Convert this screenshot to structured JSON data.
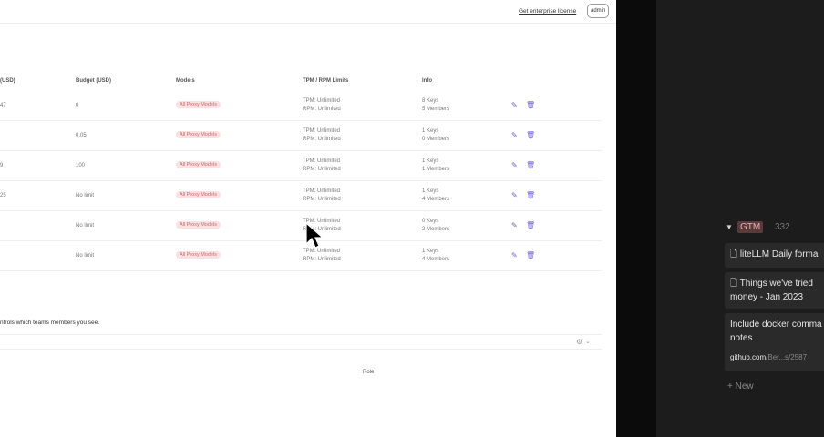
{
  "header": {
    "license_link": "Get enterprise license",
    "user_button": "admin"
  },
  "table": {
    "columns": [
      "(USD)",
      "Budget (USD)",
      "Models",
      "TPM / RPM Limits",
      "Info"
    ],
    "rows": [
      {
        "spend": "47",
        "budget": "0",
        "models": "All Proxy Models",
        "tpm": "TPM: Unlimited",
        "rpm": "RPM: Unlimited",
        "keys": "8 Keys",
        "members": "5 Members"
      },
      {
        "spend": "",
        "budget": "0.05",
        "models": "All Proxy Models",
        "tpm": "TPM: Unlimited",
        "rpm": "RPM: Unlimited",
        "keys": "1 Keys",
        "members": "0 Members"
      },
      {
        "spend": "9",
        "budget": "100",
        "models": "All Proxy Models",
        "tpm": "TPM: Unlimited",
        "rpm": "RPM: Unlimited",
        "keys": "1 Keys",
        "members": "1 Members"
      },
      {
        "spend": "25",
        "budget": "No limit",
        "models": "All Proxy Models",
        "tpm": "TPM: Unlimited",
        "rpm": "RPM: Unlimited",
        "keys": "1 Keys",
        "members": "4 Members"
      },
      {
        "spend": "",
        "budget": "No limit",
        "models": "All Proxy Models",
        "tpm": "TPM: Unlimited",
        "rpm": "RPM: Unlimited",
        "keys": "0 Keys",
        "members": "2 Members"
      },
      {
        "spend": "",
        "budget": "No limit",
        "models": "All Proxy Models",
        "tpm": "TPM: Unlimited",
        "rpm": "RPM: Unlimited",
        "keys": "1 Keys",
        "members": "4 Members"
      }
    ]
  },
  "section": {
    "note": "ntrols which teams members you see.",
    "role_header": "Role"
  },
  "board": {
    "group_tag": "GTM",
    "group_count": "332",
    "cards": [
      "liteLLM Daily forma",
      "Things we've tried money - Jan 2023"
    ],
    "link_card": {
      "title": "Include docker comma notes",
      "link_host": "github.com",
      "link_path": "/Ber...s/2587"
    },
    "new_label": "New"
  },
  "colors": {
    "accent": "#6b63d6",
    "pill_bg": "#fbe1e1",
    "pill_text": "#c86b6b"
  }
}
